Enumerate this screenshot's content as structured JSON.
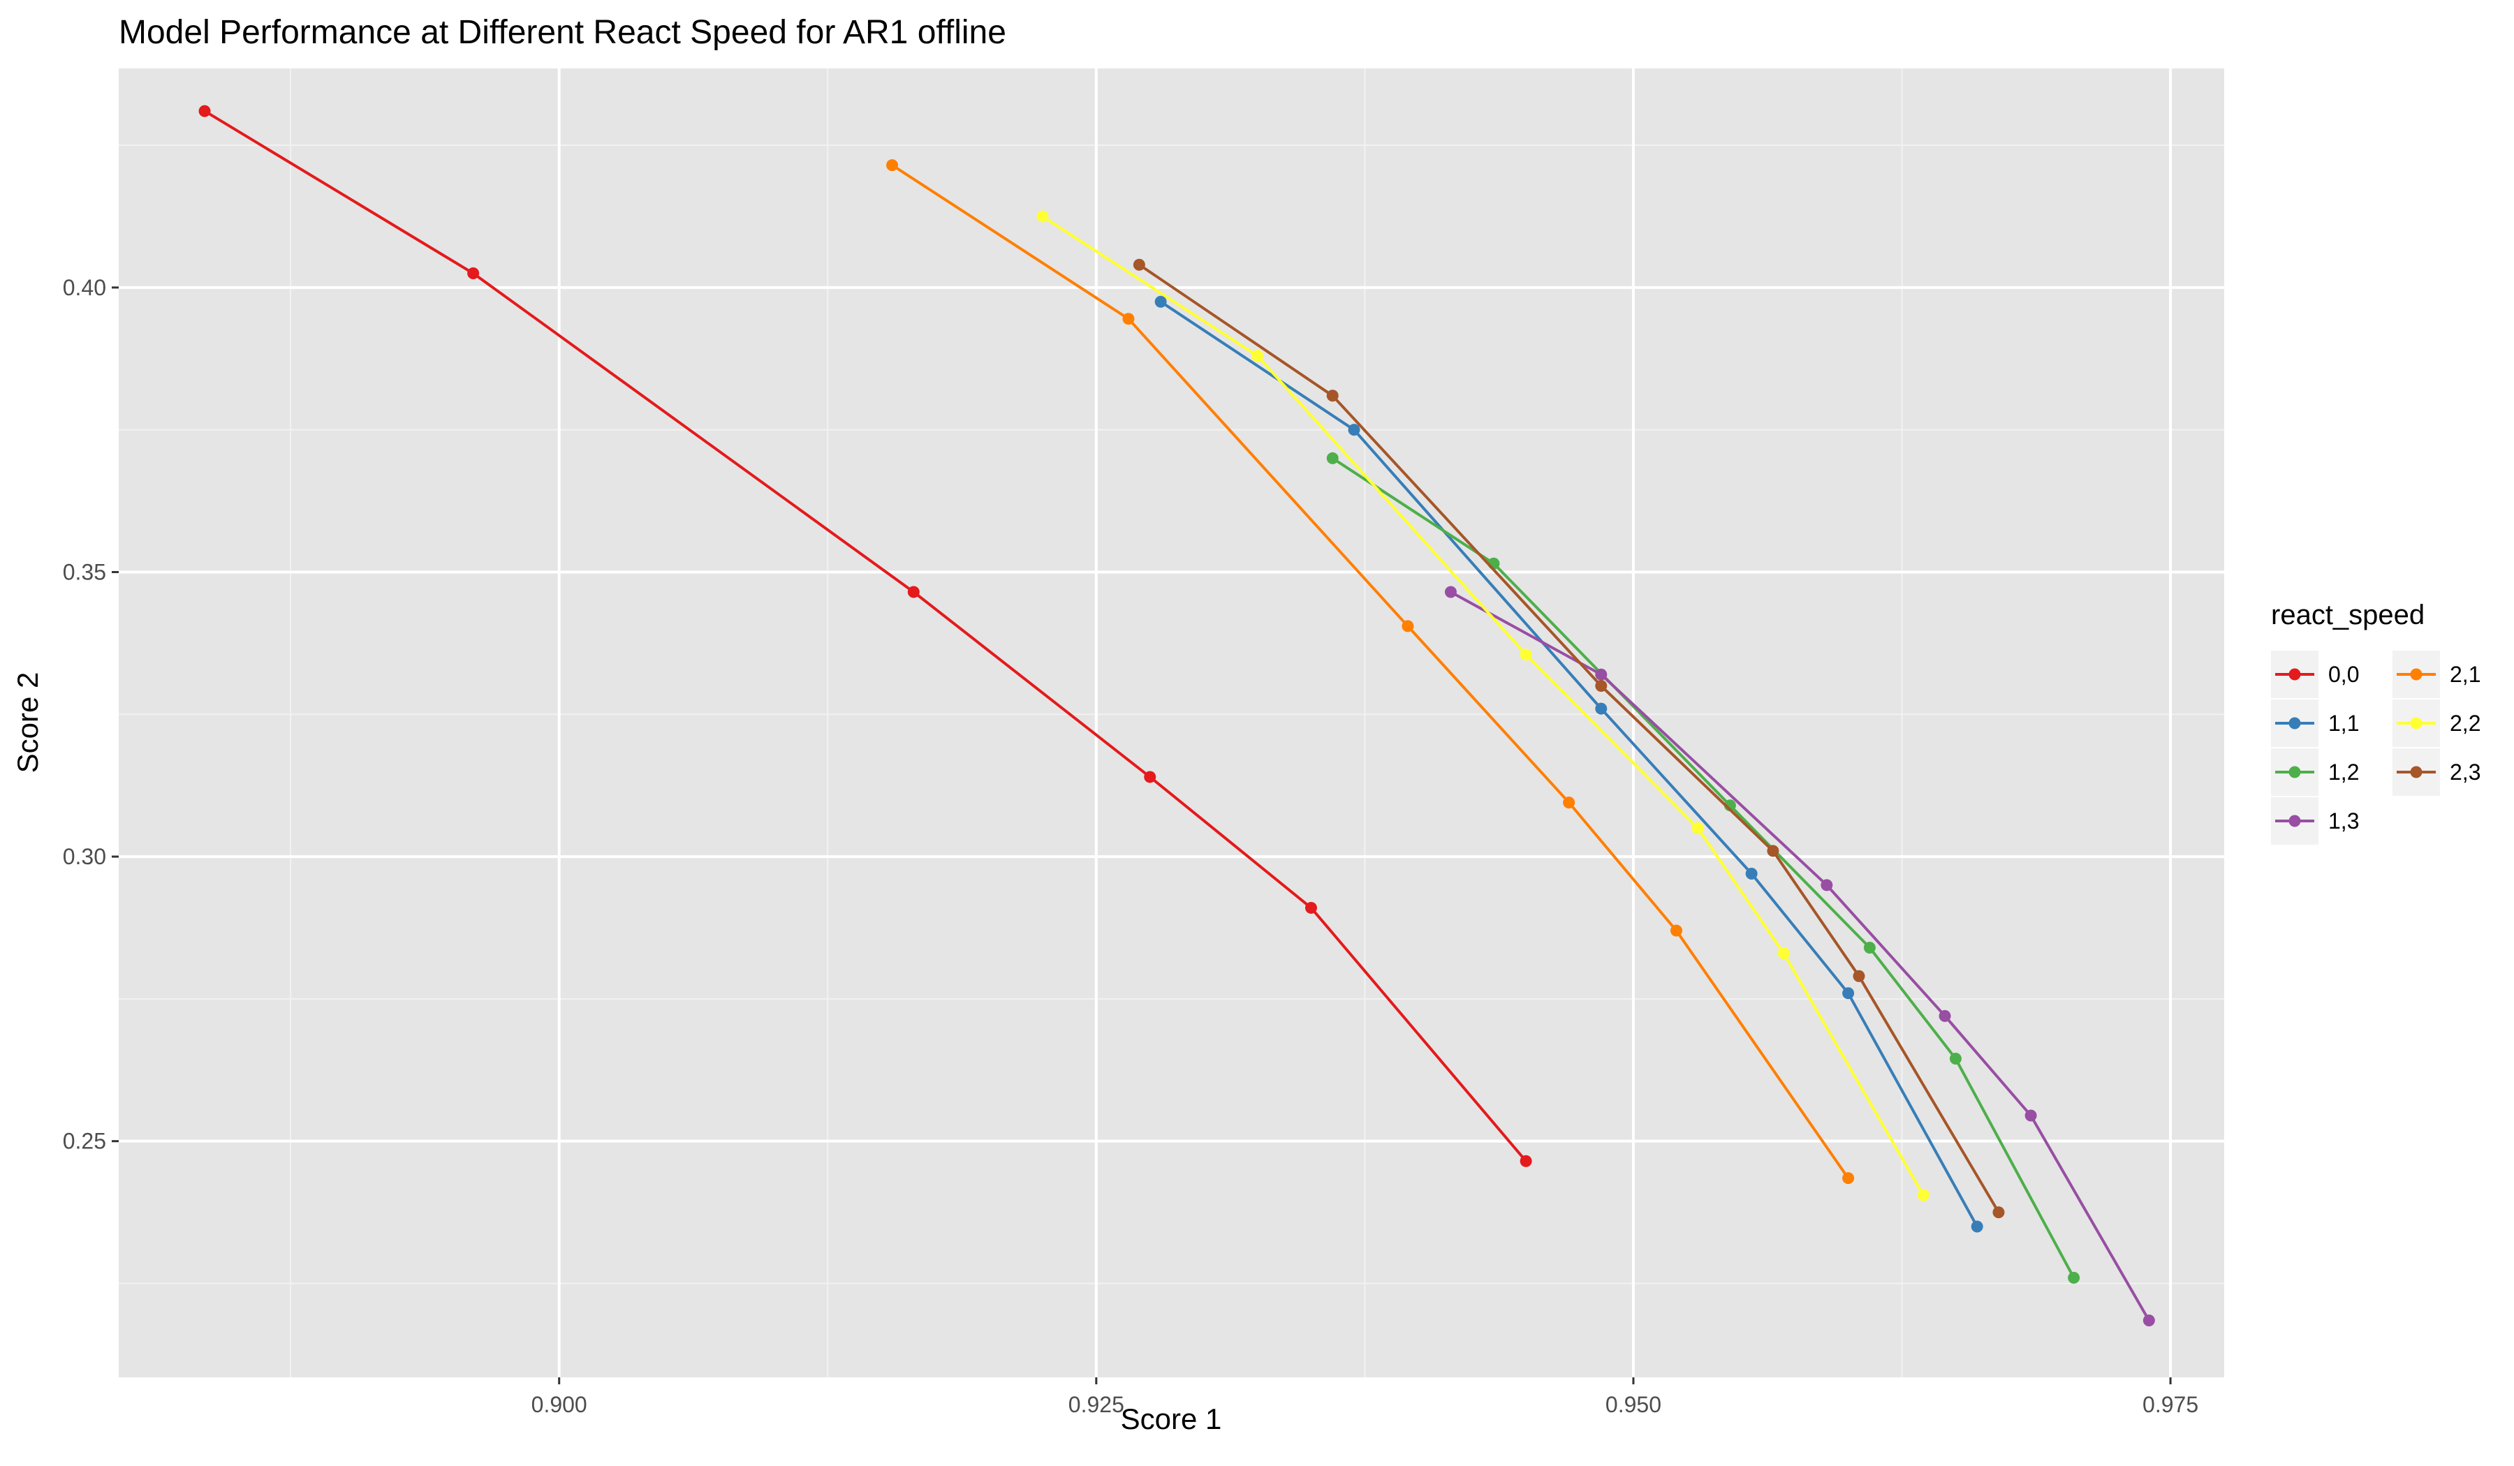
{
  "chart_data": {
    "type": "line",
    "title": "Model Performance at Different React Speed for AR1 offline",
    "xlabel": "Score 1",
    "ylabel": "Score 2",
    "xlim": [
      0.8795,
      0.9775
    ],
    "ylim": [
      0.2085,
      0.4385
    ],
    "x_ticks": [
      0.9,
      0.925,
      0.95,
      0.975
    ],
    "x_tick_labels": [
      "0.900",
      "0.925",
      "0.950",
      "0.975"
    ],
    "y_ticks": [
      0.25,
      0.3,
      0.35,
      0.4
    ],
    "y_tick_labels": [
      "0.25",
      "0.30",
      "0.35",
      "0.40"
    ],
    "grid": true,
    "legend_title": "react_speed",
    "legend_position": "right",
    "series": [
      {
        "name": "0,0",
        "color": "#E41A1C",
        "x": [
          0.8835,
          0.896,
          0.9165,
          0.9275,
          0.935,
          0.945
        ],
        "y": [
          0.431,
          0.4025,
          0.3465,
          0.314,
          0.291,
          0.2465
        ]
      },
      {
        "name": "1,1",
        "color": "#377EB8",
        "x": [
          0.928,
          0.937,
          0.9485,
          0.9555,
          0.96,
          0.966
        ],
        "y": [
          0.3975,
          0.375,
          0.326,
          0.297,
          0.276,
          0.235
        ]
      },
      {
        "name": "1,2",
        "color": "#4DAF4A",
        "x": [
          0.936,
          0.9435,
          0.9545,
          0.961,
          0.965,
          0.9705
        ],
        "y": [
          0.37,
          0.3515,
          0.309,
          0.284,
          0.2645,
          0.226
        ]
      },
      {
        "name": "1,3",
        "color": "#984EA3",
        "x": [
          0.9415,
          0.9485,
          0.959,
          0.9645,
          0.9685,
          0.974
        ],
        "y": [
          0.3465,
          0.332,
          0.295,
          0.272,
          0.2545,
          0.2185
        ]
      },
      {
        "name": "2,1",
        "color": "#FF7F00",
        "x": [
          0.9155,
          0.9265,
          0.9395,
          0.947,
          0.952,
          0.96
        ],
        "y": [
          0.4215,
          0.3945,
          0.3405,
          0.3095,
          0.287,
          0.2435
        ]
      },
      {
        "name": "2,2",
        "color": "#FFFF33",
        "x": [
          0.9225,
          0.9325,
          0.945,
          0.953,
          0.957,
          0.9635
        ],
        "y": [
          0.4125,
          0.388,
          0.3355,
          0.305,
          0.283,
          0.2405
        ]
      },
      {
        "name": "2,3",
        "color": "#A65628",
        "x": [
          0.927,
          0.936,
          0.9485,
          0.9565,
          0.9605,
          0.967
        ],
        "y": [
          0.404,
          0.381,
          0.33,
          0.301,
          0.279,
          0.2375
        ]
      }
    ]
  }
}
